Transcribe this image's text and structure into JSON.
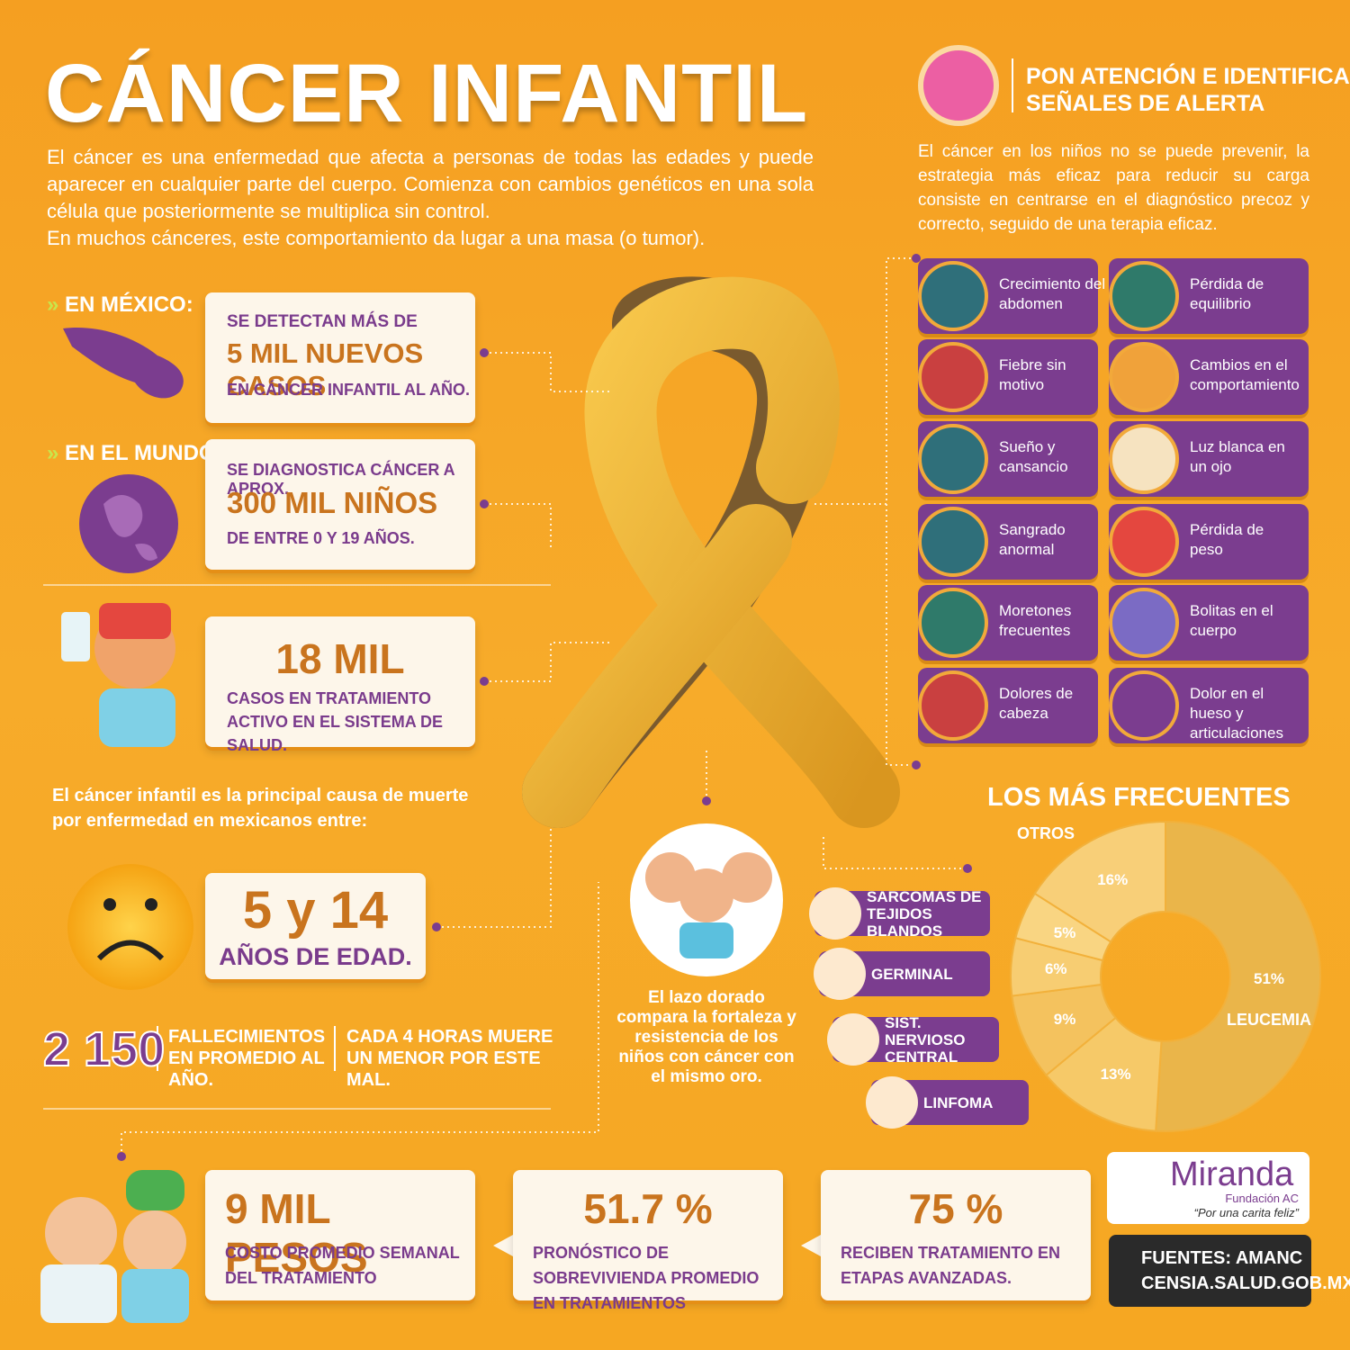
{
  "header": {
    "title": "CÁNCER INFANTIL",
    "intro": [
      "El cáncer es una enfermedad que afecta a personas de todas las edades y puede aparecer en cualquier parte del cuerpo. Comienza con cambios genéticos en una sola célula que posteriormente se multiplica sin control.",
      "En muchos cánceres, este comportamiento da lugar a una masa (o tumor)."
    ]
  },
  "alert": {
    "title": [
      "PON ATENCIÓN E IDENTIFICA",
      "SEÑALES DE ALERTA"
    ],
    "text": "El cáncer en los niños no se puede prevenir, la estrategia más eficaz para reducir su carga consiste en centrarse en el diagnóstico precoz y correcto, seguido de una terapia eficaz.",
    "signs": [
      "Crecimiento del abdomen",
      "Pérdida de equilibrio",
      "Fiebre sin motivo",
      "Cambios en el comportamiento",
      "Sueño y cansancio",
      "Luz blanca en un ojo",
      "Sangrado anormal",
      "Pérdida de peso",
      "Moretones frecuentes",
      "Bolitas en el cuerpo",
      "Dolores de cabeza",
      "Dolor en el hueso y articulaciones"
    ]
  },
  "mexico": {
    "label": "EN MÉXICO:",
    "lines": [
      "SE DETECTAN MÁS DE",
      "5 MIL NUEVOS CASOS",
      "EN CÁNCER INFANTIL AL AÑO."
    ]
  },
  "world": {
    "label": "EN EL MUNDO:",
    "lines": [
      "SE DIAGNOSTICA CÁNCER A APROX.",
      "300 MIL NIÑOS",
      "DE ENTRE 0 Y 19 AÑOS."
    ]
  },
  "treatment": {
    "big": "18 MIL",
    "text": "CASOS EN TRATAMIENTO ACTIVO EN EL SISTEMA DE SALUD."
  },
  "mortality": {
    "intro": "El cáncer infantil es la principal causa de muerte por enfermedad en mexicanos entre:",
    "big": "5 y 14",
    "sub": "AÑOS DE EDAD.",
    "deaths": "2 150",
    "deaths_text": "FALLECIMIENTOS EN PROMEDIO AL AÑO.",
    "rate_text": "CADA 4 HORAS MUERE UN MENOR POR ESTE MAL."
  },
  "ribbon": {
    "caption": "El lazo dorado compara la fortaleza y resistencia de los niños con cáncer con el mismo oro."
  },
  "cards": [
    {
      "big": "9 MIL PESOS",
      "text": "COSTO PROMEDIO SEMANAL DEL TRATAMIENTO"
    },
    {
      "big": "51.7 %",
      "text": "PRONÓSTICO DE SOBREVIVIENDA PROMEDIO EN TRATAMIENTOS"
    },
    {
      "big": "75 %",
      "text": "RECIBEN TRATAMIENTO EN ETAPAS AVANZADAS."
    }
  ],
  "logo": {
    "name": "Miranda",
    "org": "Fundación AC",
    "motto": "“Por una carita feliz”"
  },
  "sources": [
    "FUENTES: AMANC",
    "CENSIA.SALUD.GOB.MX"
  ],
  "chart_data": {
    "type": "donut",
    "title": "LOS MÁS FRECUENTES",
    "categories": [
      "LEUCEMIA",
      "LINFOMA",
      "SIST. NERVIOSO CENTRAL",
      "GERMINAL",
      "SARCOMAS DE TEJIDOS BLANDOS",
      "OTROS"
    ],
    "values": [
      51,
      13,
      9,
      6,
      5,
      16
    ],
    "value_labels": [
      "51%",
      "13%",
      "9%",
      "6%",
      "5%",
      "16%"
    ],
    "colors": [
      "#eab54a",
      "#f6c968",
      "#f4c25e",
      "#f7cd72",
      "#f9d582",
      "#f8cf78"
    ]
  }
}
